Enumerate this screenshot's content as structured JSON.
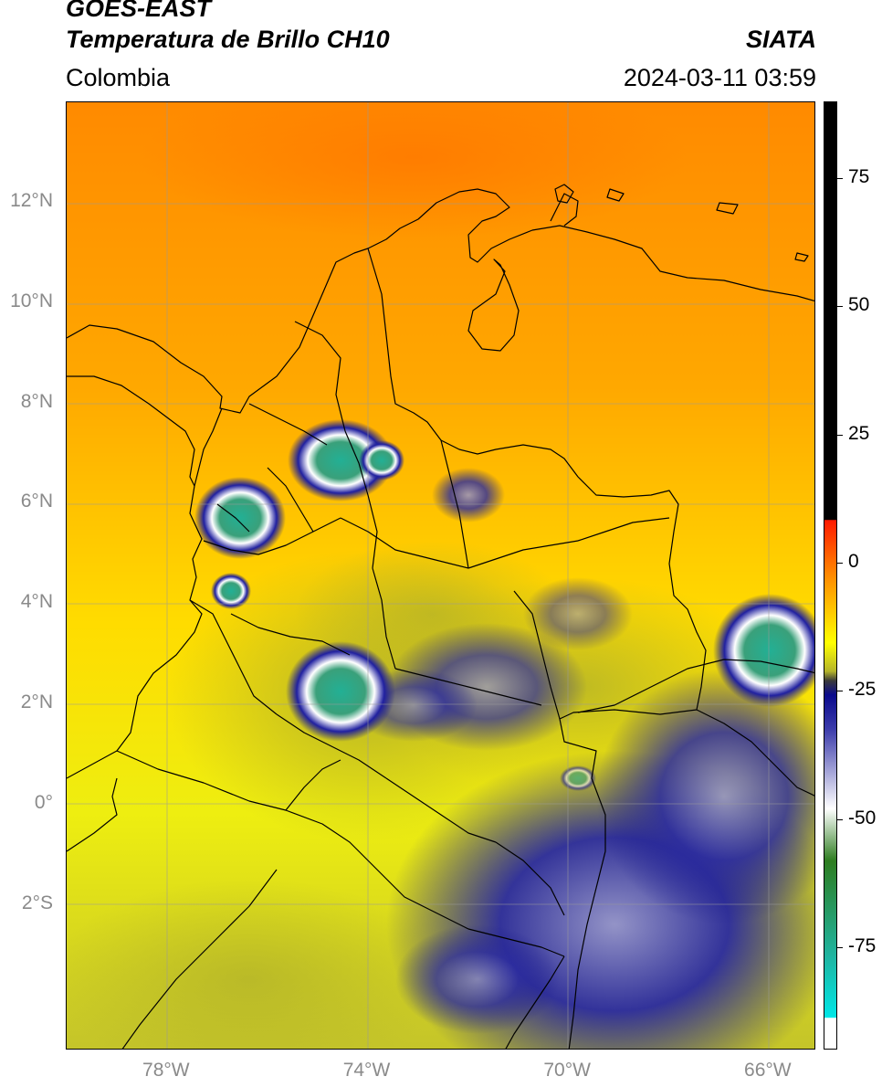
{
  "header": {
    "title_line1": "GOES-EAST",
    "title_line2": "Temperatura de Brillo CH10",
    "brand": "SIATA",
    "region": "Colombia",
    "timestamp": "2024-03-11 03:59"
  },
  "map": {
    "lat_range": [
      -4.9,
      14.0
    ],
    "lon_range": [
      -80.0,
      -65.05
    ],
    "lat_labels": [
      {
        "lat": 12,
        "text": "12°N"
      },
      {
        "lat": 10,
        "text": "10°N"
      },
      {
        "lat": 8,
        "text": "8°N"
      },
      {
        "lat": 6,
        "text": "6°N"
      },
      {
        "lat": 4,
        "text": "4°N"
      },
      {
        "lat": 2,
        "text": "2°N"
      },
      {
        "lat": 0,
        "text": "0°"
      },
      {
        "lat": -2,
        "text": "2°S"
      }
    ],
    "lon_labels": [
      {
        "lon": -78,
        "text": "78°W"
      },
      {
        "lon": -74,
        "text": "74°W"
      },
      {
        "lon": -70,
        "text": "70°W"
      },
      {
        "lon": -66,
        "text": "66°W"
      }
    ]
  },
  "colorbar": {
    "range": [
      -95,
      90
    ],
    "ticks": [
      {
        "value": 75,
        "text": "75"
      },
      {
        "value": 50,
        "text": "50"
      },
      {
        "value": 25,
        "text": "25"
      },
      {
        "value": 0,
        "text": "0"
      },
      {
        "value": -25,
        "text": "-25"
      },
      {
        "value": -50,
        "text": "-50"
      },
      {
        "value": -75,
        "text": "-75"
      }
    ],
    "colors": {
      "warm_black": "#000000",
      "red": "#ff1a00",
      "orange": "#ff8c00",
      "yellow": "#ffff00",
      "olive": "#b5b52a",
      "dark_gray": "#3a3a3a",
      "navy": "#0a0a8c",
      "white": "#ffffff",
      "green": "#2e7d20",
      "teal": "#20b4a0",
      "cyan": "#00e6e6"
    }
  }
}
